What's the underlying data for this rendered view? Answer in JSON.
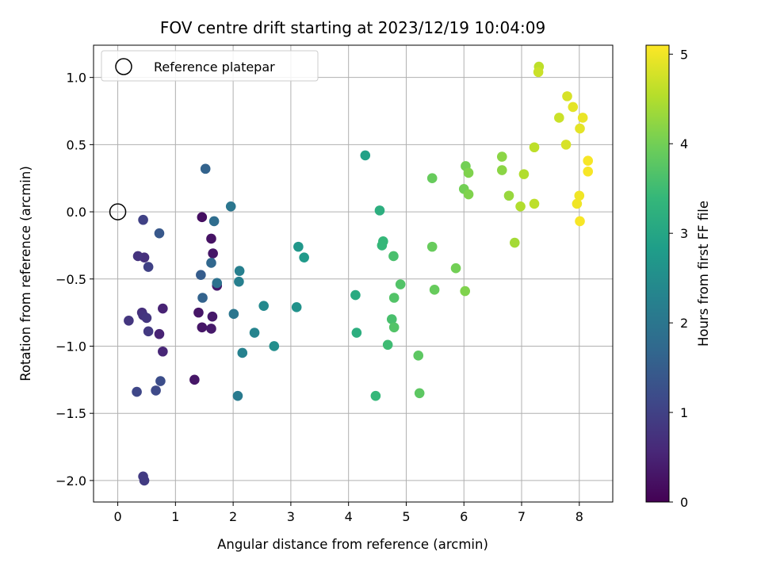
{
  "chart_data": {
    "type": "scatter",
    "title": "FOV centre drift starting at 2023/12/19 10:04:09",
    "xlabel": "Angular distance from reference (arcmin)",
    "ylabel": "Rotation from reference (arcmin)",
    "xlim": [
      -0.42,
      8.58
    ],
    "ylim": [
      -2.16,
      1.24
    ],
    "xticks": [
      0,
      1,
      2,
      3,
      4,
      5,
      6,
      7,
      8
    ],
    "xtick_labels": [
      "0",
      "1",
      "2",
      "3",
      "4",
      "5",
      "6",
      "7",
      "8"
    ],
    "yticks": [
      -2.0,
      -1.5,
      -1.0,
      -0.5,
      0.0,
      0.5,
      1.0
    ],
    "ytick_labels": [
      "−2.0",
      "−1.5",
      "−1.0",
      "−0.5",
      "0.0",
      "0.5",
      "1.0"
    ],
    "grid": true,
    "colormap": "viridis",
    "colorbar": {
      "label": "Hours from first FF file",
      "range": [
        0,
        5.1
      ],
      "ticks": [
        0,
        1,
        2,
        3,
        4,
        5
      ],
      "tick_labels": [
        "0",
        "1",
        "2",
        "3",
        "4",
        "5"
      ]
    },
    "legend": {
      "position": "upper-left",
      "entries": [
        {
          "label": "Reference platepar",
          "marker": "open-circle"
        }
      ]
    },
    "reference_point": {
      "x": 0,
      "y": 0
    },
    "points": [
      {
        "x": 1.46,
        "y": -0.04,
        "c": 0.2
      },
      {
        "x": 1.62,
        "y": -0.2,
        "c": 0.25
      },
      {
        "x": 1.65,
        "y": -0.31,
        "c": 0.3
      },
      {
        "x": 1.72,
        "y": -0.55,
        "c": 0.35
      },
      {
        "x": 1.4,
        "y": -0.75,
        "c": 0.3
      },
      {
        "x": 1.64,
        "y": -0.78,
        "c": 0.35
      },
      {
        "x": 1.46,
        "y": -0.86,
        "c": 0.3
      },
      {
        "x": 1.62,
        "y": -0.87,
        "c": 0.35
      },
      {
        "x": 1.33,
        "y": -1.25,
        "c": 0.3
      },
      {
        "x": 0.78,
        "y": -0.72,
        "c": 0.5
      },
      {
        "x": 0.72,
        "y": -0.91,
        "c": 0.5
      },
      {
        "x": 0.78,
        "y": -1.04,
        "c": 0.55
      },
      {
        "x": 0.46,
        "y": -0.34,
        "c": 0.7
      },
      {
        "x": 0.35,
        "y": -0.33,
        "c": 0.75
      },
      {
        "x": 0.42,
        "y": -0.75,
        "c": 0.7
      },
      {
        "x": 0.44,
        "y": -0.77,
        "c": 0.75
      },
      {
        "x": 0.5,
        "y": -0.79,
        "c": 0.8
      },
      {
        "x": 0.19,
        "y": -0.81,
        "c": 0.8
      },
      {
        "x": 0.53,
        "y": -0.89,
        "c": 0.85
      },
      {
        "x": 0.44,
        "y": -1.97,
        "c": 0.9
      },
      {
        "x": 0.46,
        "y": -2.0,
        "c": 0.9
      },
      {
        "x": 0.44,
        "y": -0.06,
        "c": 1.0
      },
      {
        "x": 0.53,
        "y": -0.41,
        "c": 1.0
      },
      {
        "x": 0.33,
        "y": -1.34,
        "c": 1.1
      },
      {
        "x": 0.66,
        "y": -1.33,
        "c": 1.15
      },
      {
        "x": 0.74,
        "y": -1.26,
        "c": 1.2
      },
      {
        "x": 0.72,
        "y": -0.16,
        "c": 1.4
      },
      {
        "x": 1.44,
        "y": -0.47,
        "c": 1.5
      },
      {
        "x": 1.52,
        "y": 0.32,
        "c": 1.6
      },
      {
        "x": 1.47,
        "y": -0.64,
        "c": 1.6
      },
      {
        "x": 1.62,
        "y": -0.38,
        "c": 1.7
      },
      {
        "x": 1.67,
        "y": -0.07,
        "c": 1.8
      },
      {
        "x": 1.72,
        "y": -0.53,
        "c": 1.9
      },
      {
        "x": 1.96,
        "y": 0.04,
        "c": 2.0
      },
      {
        "x": 2.01,
        "y": -0.76,
        "c": 2.0
      },
      {
        "x": 2.08,
        "y": -1.37,
        "c": 2.1
      },
      {
        "x": 2.11,
        "y": -0.44,
        "c": 2.2
      },
      {
        "x": 2.1,
        "y": -0.52,
        "c": 2.2
      },
      {
        "x": 2.16,
        "y": -1.05,
        "c": 2.25
      },
      {
        "x": 2.37,
        "y": -0.9,
        "c": 2.3
      },
      {
        "x": 2.53,
        "y": -0.7,
        "c": 2.4
      },
      {
        "x": 2.71,
        "y": -1.0,
        "c": 2.5
      },
      {
        "x": 3.1,
        "y": -0.71,
        "c": 2.6
      },
      {
        "x": 3.13,
        "y": -0.26,
        "c": 2.7
      },
      {
        "x": 3.23,
        "y": -0.34,
        "c": 2.75
      },
      {
        "x": 4.29,
        "y": 0.42,
        "c": 2.9
      },
      {
        "x": 4.12,
        "y": -0.62,
        "c": 3.1
      },
      {
        "x": 4.14,
        "y": -0.9,
        "c": 3.2
      },
      {
        "x": 4.54,
        "y": 0.01,
        "c": 3.2
      },
      {
        "x": 4.47,
        "y": -1.37,
        "c": 3.4
      },
      {
        "x": 4.6,
        "y": -0.22,
        "c": 3.4
      },
      {
        "x": 4.58,
        "y": -0.25,
        "c": 3.4
      },
      {
        "x": 4.68,
        "y": -0.99,
        "c": 3.5
      },
      {
        "x": 4.78,
        "y": -0.33,
        "c": 3.6
      },
      {
        "x": 4.75,
        "y": -0.8,
        "c": 3.6
      },
      {
        "x": 4.79,
        "y": -0.64,
        "c": 3.7
      },
      {
        "x": 4.79,
        "y": -0.86,
        "c": 3.7
      },
      {
        "x": 4.9,
        "y": -0.54,
        "c": 3.7
      },
      {
        "x": 5.21,
        "y": -1.07,
        "c": 3.8
      },
      {
        "x": 5.23,
        "y": -1.35,
        "c": 3.8
      },
      {
        "x": 5.45,
        "y": 0.25,
        "c": 3.9
      },
      {
        "x": 5.45,
        "y": -0.26,
        "c": 3.9
      },
      {
        "x": 5.49,
        "y": -0.58,
        "c": 3.9
      },
      {
        "x": 5.86,
        "y": -0.42,
        "c": 4.0
      },
      {
        "x": 6.03,
        "y": 0.34,
        "c": 4.0
      },
      {
        "x": 6.0,
        "y": 0.17,
        "c": 4.0
      },
      {
        "x": 6.08,
        "y": 0.13,
        "c": 4.1
      },
      {
        "x": 6.08,
        "y": 0.29,
        "c": 4.1
      },
      {
        "x": 6.02,
        "y": -0.59,
        "c": 4.1
      },
      {
        "x": 6.66,
        "y": 0.41,
        "c": 4.2
      },
      {
        "x": 6.66,
        "y": 0.31,
        "c": 4.2
      },
      {
        "x": 6.78,
        "y": 0.12,
        "c": 4.3
      },
      {
        "x": 6.88,
        "y": -0.23,
        "c": 4.4
      },
      {
        "x": 6.98,
        "y": 0.04,
        "c": 4.5
      },
      {
        "x": 7.04,
        "y": 0.28,
        "c": 4.5
      },
      {
        "x": 7.22,
        "y": 0.48,
        "c": 4.6
      },
      {
        "x": 7.22,
        "y": 0.06,
        "c": 4.6
      },
      {
        "x": 7.3,
        "y": 1.08,
        "c": 4.6
      },
      {
        "x": 7.29,
        "y": 1.04,
        "c": 4.7
      },
      {
        "x": 7.65,
        "y": 0.7,
        "c": 4.7
      },
      {
        "x": 7.79,
        "y": 0.86,
        "c": 4.8
      },
      {
        "x": 7.77,
        "y": 0.5,
        "c": 4.8
      },
      {
        "x": 7.89,
        "y": 0.78,
        "c": 4.9
      },
      {
        "x": 8.01,
        "y": 0.62,
        "c": 4.9
      },
      {
        "x": 8.06,
        "y": 0.7,
        "c": 4.95
      },
      {
        "x": 7.96,
        "y": 0.06,
        "c": 5.0
      },
      {
        "x": 8.0,
        "y": 0.12,
        "c": 5.0
      },
      {
        "x": 8.01,
        "y": -0.07,
        "c": 5.05
      },
      {
        "x": 8.15,
        "y": 0.38,
        "c": 5.05
      },
      {
        "x": 8.15,
        "y": 0.3,
        "c": 5.05
      }
    ]
  }
}
